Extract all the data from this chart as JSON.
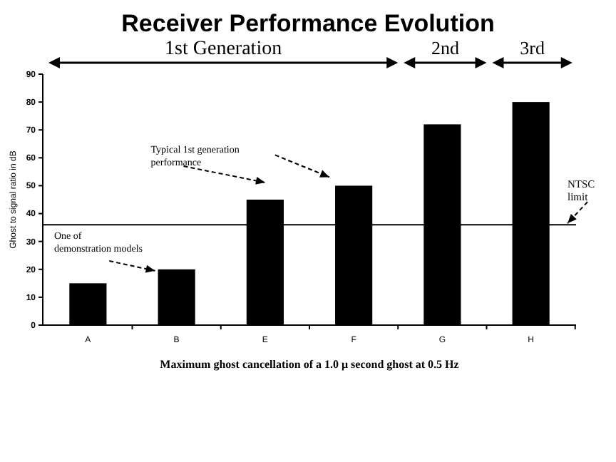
{
  "chart_data": {
    "type": "bar",
    "title": "Receiver Performance Evolution",
    "xlabel": "Maximum ghost cancellation of a 1.0 μ second ghost at 0.5 Hz",
    "ylabel": "Ghost to signal ratio in dB",
    "categories": [
      "A",
      "B",
      "E",
      "F",
      "G",
      "H"
    ],
    "values": [
      15,
      20,
      45,
      50,
      72,
      80
    ],
    "color": "#000000",
    "ylim": [
      0,
      90
    ],
    "yticks": [
      0,
      10,
      20,
      30,
      40,
      50,
      60,
      70,
      80,
      90
    ],
    "grid": false,
    "ref_lines": [
      {
        "axis": "y",
        "value": 36,
        "label": "NTSC limit",
        "color": "#000000"
      }
    ],
    "annotations": [
      "1st Generation",
      "2nd",
      "3rd",
      "Typical 1st generation performance",
      "One of demonstration models"
    ]
  }
}
